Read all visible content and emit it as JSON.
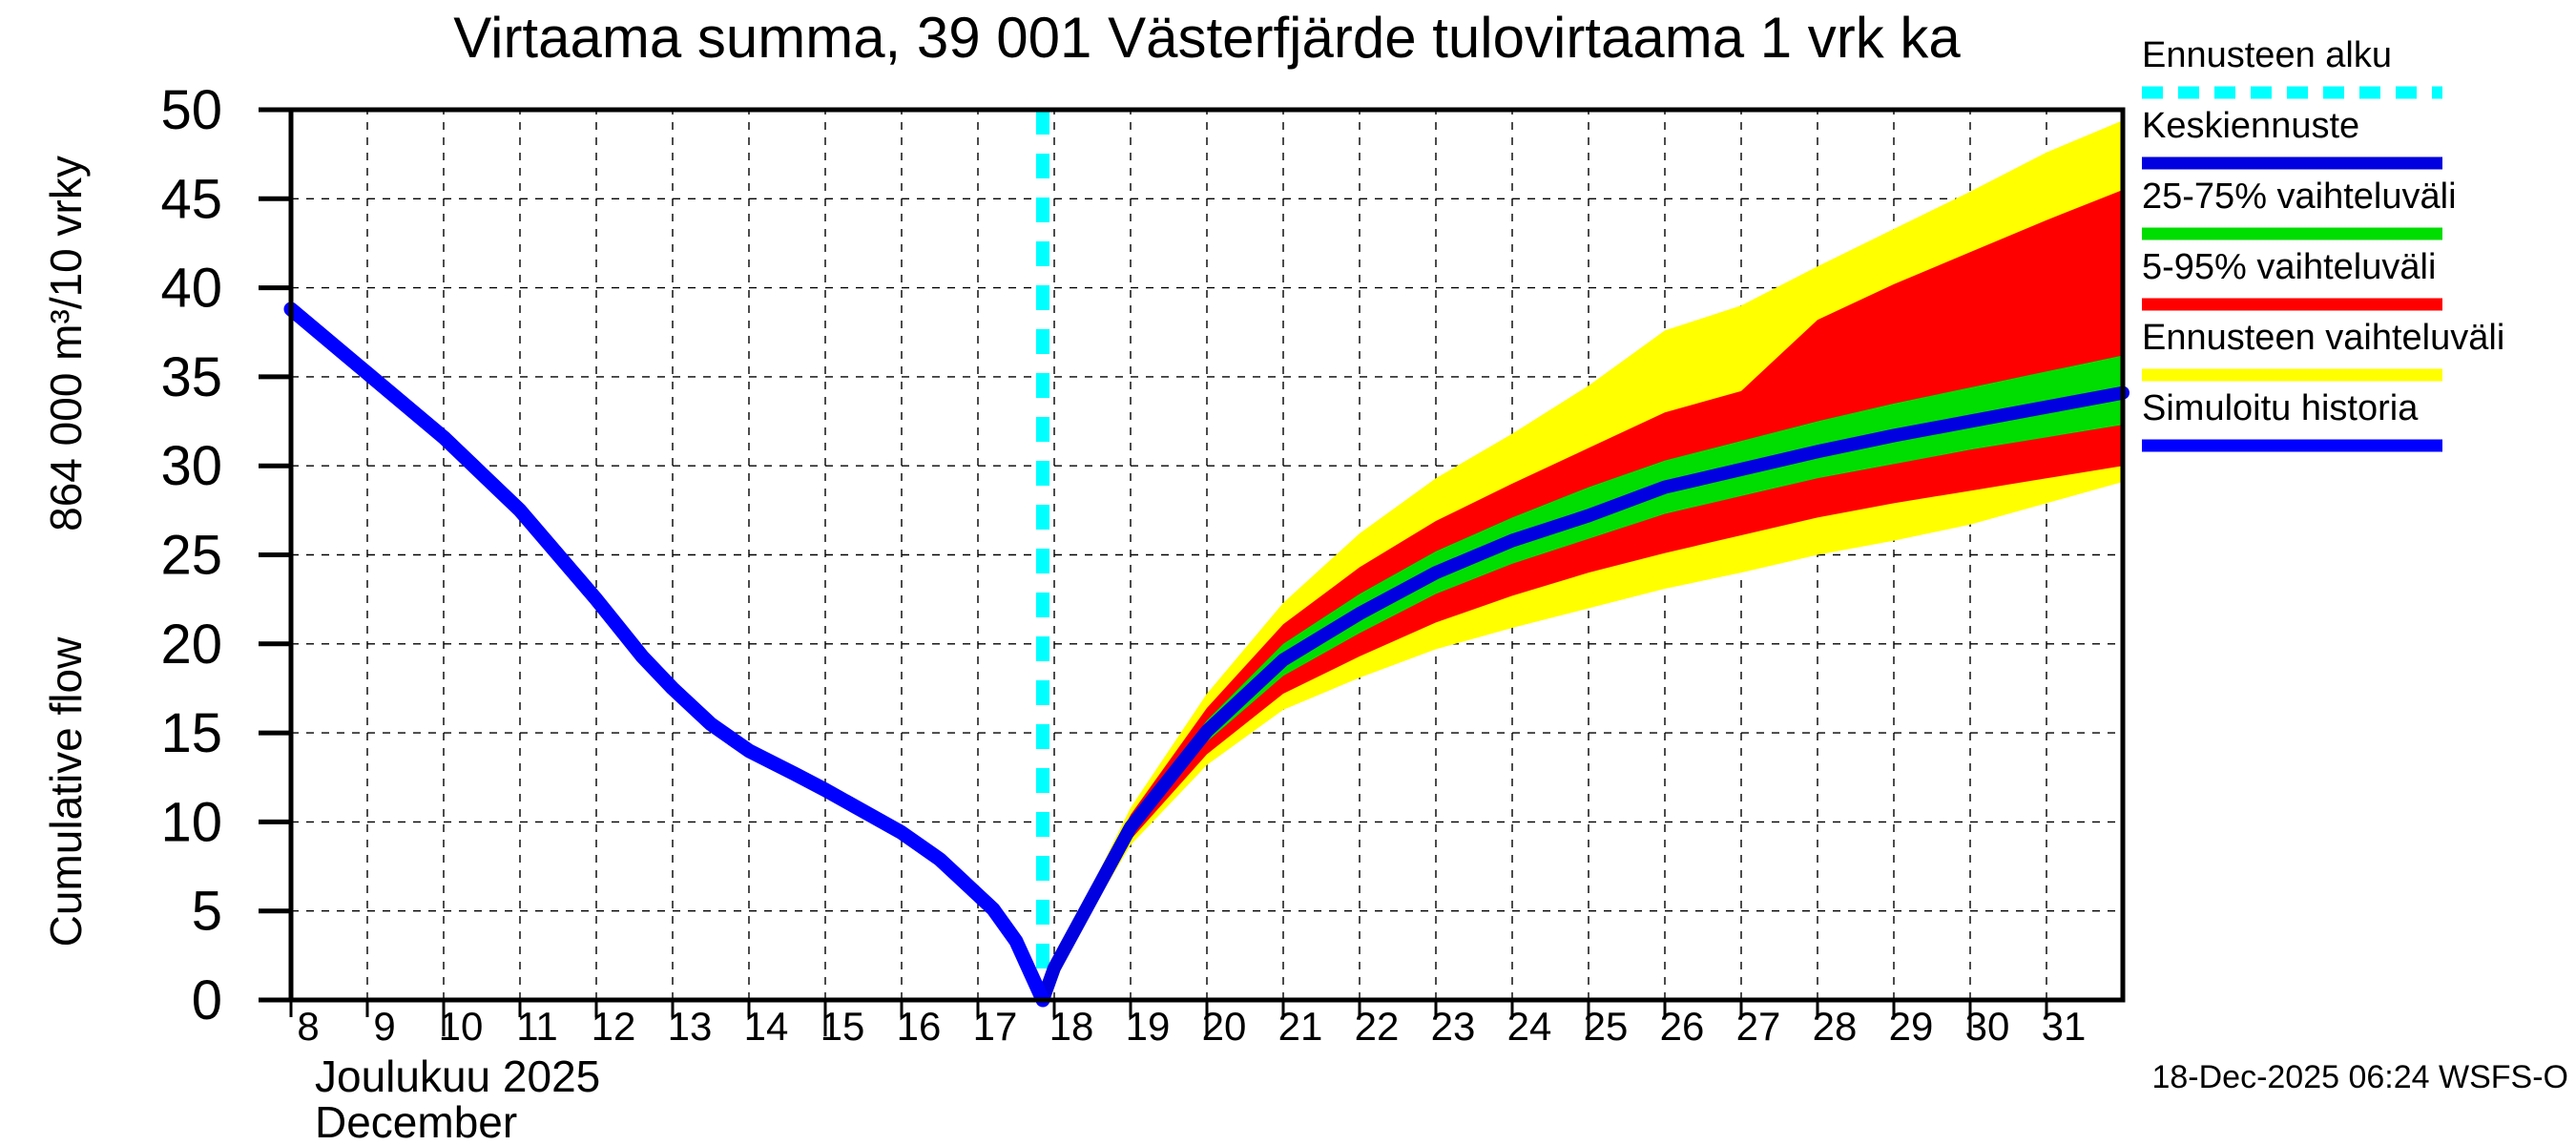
{
  "title": "Virtaama summa, 39 001 Västerfjärde tulovirtaama 1 vrk ka",
  "y_axis": {
    "label_en": "Cumulative flow",
    "label_unit": "864 000 m³/10 vrky",
    "ticks": [
      0,
      5,
      10,
      15,
      20,
      25,
      30,
      35,
      40,
      45,
      50
    ]
  },
  "x_axis": {
    "day_ticks": [
      8,
      9,
      10,
      11,
      12,
      13,
      14,
      15,
      16,
      17,
      18,
      19,
      20,
      21,
      22,
      23,
      24,
      25,
      26,
      27,
      28,
      29,
      30,
      31
    ],
    "month_fi": "Joulukuu  2025",
    "month_en": "December"
  },
  "footer": {
    "timestamp": "18-Dec-2025 06:24 WSFS-O"
  },
  "colors": {
    "forecast_start": "#00ffff",
    "median": "#0000e0",
    "band_25_75": "#00dd00",
    "band_5_95": "#ff0000",
    "band_minmax": "#ffff00",
    "history": "#0000ff",
    "grid": "#000000"
  },
  "legend": [
    {
      "label": "Ennusteen alku",
      "color": "#00ffff",
      "style": "dashed"
    },
    {
      "label": "Keskiennuste",
      "color": "#0000e0",
      "style": "solid"
    },
    {
      "label": "25-75% vaihteluväli",
      "color": "#00dd00",
      "style": "solid"
    },
    {
      "label": "5-95% vaihteluväli",
      "color": "#ff0000",
      "style": "solid"
    },
    {
      "label": "Ennusteen vaihteluväli",
      "color": "#ffff00",
      "style": "solid"
    },
    {
      "label": "Simuloitu historia",
      "color": "#0000ff",
      "style": "solid"
    }
  ],
  "chart_data": {
    "type": "line",
    "title": "Virtaama summa, 39 001 Västerfjärde tulovirtaama 1 vrk ka",
    "xlabel": "Joulukuu 2025 / December",
    "ylabel": "Cumulative flow 864 000 m³/10 vrky",
    "x_domain": [
      8,
      32
    ],
    "y_domain": [
      0,
      50
    ],
    "grid": true,
    "legend_position": "top-right",
    "forecast_start_x": 17.85,
    "history": {
      "x": [
        8,
        9,
        10,
        11,
        12,
        12.6,
        13,
        13.5,
        14,
        14.6,
        15,
        15.5,
        16,
        16.5,
        16.9,
        17.2,
        17.5,
        17.85
      ],
      "y": [
        38.8,
        35.2,
        31.6,
        27.5,
        22.5,
        19.3,
        17.5,
        15.5,
        14.0,
        12.7,
        11.8,
        10.6,
        9.4,
        7.9,
        6.3,
        5.1,
        3.3,
        0
      ]
    },
    "forecast_x": [
      17.85,
      18,
      19,
      20,
      21,
      22,
      23,
      24,
      25,
      26,
      27,
      28,
      29,
      30,
      31,
      32
    ],
    "series": [
      {
        "name": "Keskiennuste",
        "values": [
          0,
          1.8,
          9.7,
          15.1,
          19.1,
          21.7,
          24.0,
          25.8,
          27.2,
          28.8,
          29.8,
          30.8,
          31.7,
          32.5,
          33.3,
          34.1
        ]
      },
      {
        "name": "25-75% vaihteluväli upper",
        "values": [
          0,
          1.9,
          10.0,
          15.7,
          20.0,
          22.8,
          25.2,
          27.1,
          28.8,
          30.3,
          31.4,
          32.5,
          33.5,
          34.4,
          35.3,
          36.2
        ]
      },
      {
        "name": "25-75% vaihteluväli lower",
        "values": [
          0,
          1.7,
          9.4,
          14.5,
          18.2,
          20.6,
          22.8,
          24.5,
          25.9,
          27.3,
          28.3,
          29.3,
          30.1,
          30.9,
          31.6,
          32.3
        ]
      },
      {
        "name": "5-95% vaihteluväli upper",
        "values": [
          0,
          2.0,
          10.4,
          16.4,
          21.1,
          24.3,
          26.9,
          29.0,
          31.0,
          33.0,
          34.2,
          38.2,
          40.2,
          42.0,
          43.8,
          45.5
        ]
      },
      {
        "name": "5-95% vaihteluväli lower",
        "values": [
          0,
          1.6,
          9.0,
          13.8,
          17.2,
          19.3,
          21.2,
          22.7,
          24.0,
          25.1,
          26.1,
          27.1,
          27.9,
          28.6,
          29.3,
          30.0
        ]
      },
      {
        "name": "Ennusteen vaihteluväli upper",
        "values": [
          0,
          2.1,
          10.8,
          17.2,
          22.3,
          26.2,
          29.3,
          31.8,
          34.5,
          37.6,
          39.0,
          41.2,
          43.3,
          45.4,
          47.6,
          49.4
        ]
      },
      {
        "name": "Ennusteen vaihteluväli lower",
        "values": [
          0,
          1.5,
          8.7,
          13.2,
          16.3,
          18.1,
          19.7,
          20.9,
          22.0,
          23.1,
          24.0,
          25.0,
          25.8,
          26.7,
          27.9,
          29.1
        ]
      }
    ]
  }
}
